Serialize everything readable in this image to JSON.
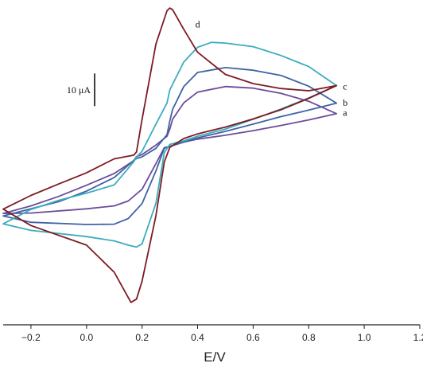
{
  "chart_data": {
    "type": "line",
    "title": "",
    "xlabel": "E/V",
    "ylabel": "",
    "xlim": [
      -0.3,
      1.2
    ],
    "ylim": [
      -46,
      47
    ],
    "grid": false,
    "x_ticks": [
      -0.2,
      0.0,
      0.2,
      0.4,
      0.6,
      0.8,
      1.0,
      1.2
    ],
    "x_tick_labels": [
      "−0.2",
      "0.0",
      "0.2",
      "0.4",
      "0.6",
      "0.8",
      "1.0",
      "1.2"
    ],
    "scale_bar": {
      "label": "10 μA",
      "value": 10,
      "anchor_y": 16
    },
    "series": [
      {
        "name": "a",
        "color": "#6b4c9a",
        "label_y": 14,
        "x": [
          0.9,
          0.8,
          0.7,
          0.6,
          0.5,
          0.4,
          0.35,
          0.31,
          0.3,
          0.29,
          0.25,
          0.2,
          0.18,
          0.17,
          0.1,
          0.0,
          -0.1,
          -0.2,
          -0.3,
          -0.2,
          0.0,
          0.1,
          0.15,
          0.2,
          0.25,
          0.28,
          0.3,
          0.35,
          0.4,
          0.5,
          0.6,
          0.7,
          0.8,
          0.9
        ],
        "y": [
          13.7,
          17.5,
          19.9,
          21.5,
          22.0,
          20.3,
          17.0,
          12.0,
          9.0,
          6.8,
          4.1,
          1.2,
          0.6,
          -0.7,
          -4.6,
          -8.2,
          -11.6,
          -14.5,
          -16.8,
          -16.7,
          -15.4,
          -14.5,
          -13.0,
          -9.4,
          -1.6,
          3.3,
          3.7,
          5.0,
          5.9,
          7.1,
          8.5,
          10.1,
          11.8,
          13.7
        ]
      },
      {
        "name": "b",
        "color": "#3d63a3",
        "label_y": 17,
        "x": [
          0.9,
          0.8,
          0.7,
          0.6,
          0.5,
          0.4,
          0.35,
          0.31,
          0.3,
          0.29,
          0.25,
          0.2,
          0.18,
          0.17,
          0.1,
          0.0,
          -0.1,
          -0.2,
          -0.3,
          -0.2,
          0.0,
          0.1,
          0.15,
          0.2,
          0.25,
          0.28,
          0.3,
          0.35,
          0.4,
          0.5,
          0.6,
          0.7,
          0.8,
          0.9
        ],
        "y": [
          16.9,
          22.1,
          25.4,
          27.0,
          27.8,
          26.3,
          22.0,
          15.0,
          11.5,
          7.3,
          3.1,
          0.5,
          0.0,
          -0.6,
          -5.8,
          -10.0,
          -13.2,
          -15.4,
          -17.6,
          -19.5,
          -20.2,
          -20.1,
          -18.4,
          -13.8,
          -3.8,
          3.1,
          3.7,
          5.0,
          6.3,
          8.3,
          10.5,
          12.8,
          14.8,
          16.9
        ]
      },
      {
        "name": "c",
        "color": "#3cacbf",
        "label_y": 22,
        "x": [
          0.9,
          0.8,
          0.7,
          0.6,
          0.5,
          0.45,
          0.4,
          0.35,
          0.3,
          0.29,
          0.25,
          0.2,
          0.18,
          0.17,
          0.1,
          0.0,
          -0.1,
          -0.2,
          -0.3,
          -0.2,
          0.0,
          0.1,
          0.15,
          0.18,
          0.2,
          0.25,
          0.28,
          0.3,
          0.35,
          0.4,
          0.5,
          0.6,
          0.7,
          0.8,
          0.9
        ],
        "y": [
          22.3,
          28.1,
          31.5,
          34.2,
          35.3,
          35.5,
          34.0,
          29.5,
          21.0,
          17.0,
          10.5,
          2.2,
          0.4,
          -1.0,
          -8.1,
          -10.6,
          -12.8,
          -15.6,
          -20.0,
          -22.0,
          -23.9,
          -25.2,
          -26.5,
          -27.1,
          -26.1,
          -13.7,
          1.8,
          4.3,
          5.4,
          6.8,
          9.0,
          12.0,
          15.1,
          18.5,
          22.3
        ]
      },
      {
        "name": "d",
        "color": "#7d1b22",
        "label_y": 41,
        "x": [
          0.9,
          0.8,
          0.7,
          0.6,
          0.5,
          0.4,
          0.35,
          0.31,
          0.3,
          0.29,
          0.25,
          0.2,
          0.18,
          0.17,
          0.1,
          0.0,
          -0.1,
          -0.2,
          -0.3,
          -0.2,
          0.0,
          0.1,
          0.15,
          0.16,
          0.18,
          0.2,
          0.25,
          0.28,
          0.3,
          0.35,
          0.4,
          0.5,
          0.6,
          0.7,
          0.8,
          0.9
        ],
        "y": [
          22.3,
          20.7,
          21.4,
          22.9,
          25.7,
          32.5,
          39.5,
          45.5,
          46.0,
          45.2,
          35.0,
          12.0,
          2.0,
          1.0,
          -0.1,
          -4.4,
          -7.8,
          -11.3,
          -15.5,
          -20.5,
          -26.5,
          -34.8,
          -42.5,
          -44.0,
          -43.0,
          -37.5,
          -17.5,
          -1.1,
          3.4,
          6.1,
          7.5,
          9.6,
          12.1,
          14.9,
          18.4,
          22.3
        ]
      }
    ]
  }
}
